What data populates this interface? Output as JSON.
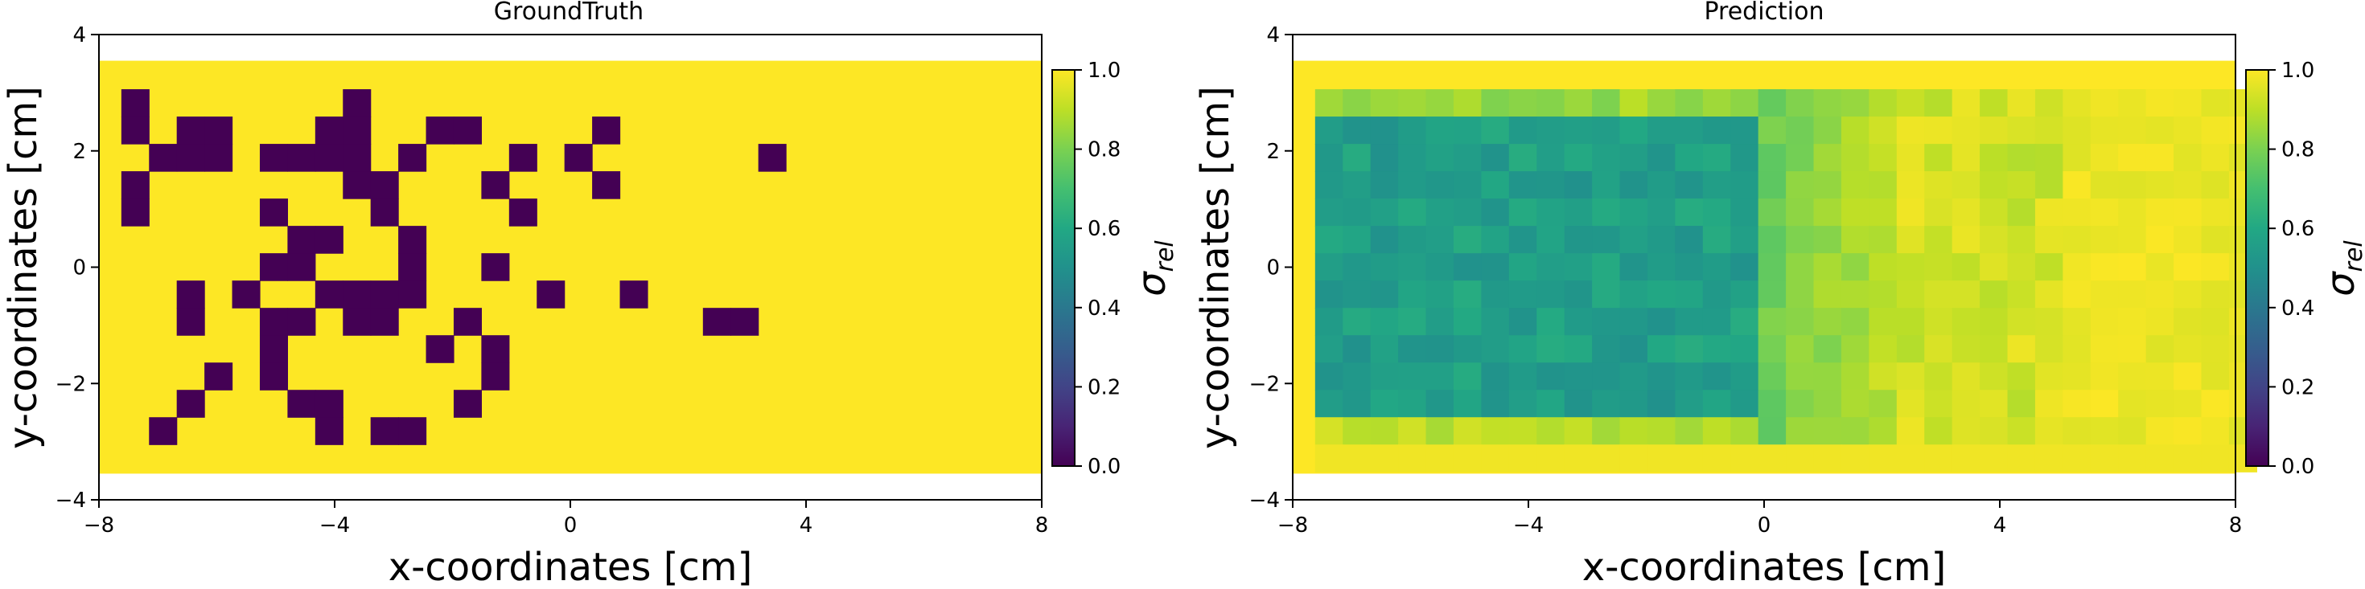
{
  "chart_data": [
    {
      "type": "heatmap",
      "title": "GroundTruth",
      "xlabel": "x-coordinates [cm]",
      "ylabel": "y-coordinates [cm]",
      "xlim": [
        -8,
        8
      ],
      "ylim": [
        -4,
        4
      ],
      "xticks": [
        -8,
        -4,
        0,
        4,
        8
      ],
      "yticks": [
        -4,
        -2,
        0,
        2,
        4
      ],
      "field_extent": {
        "x": [
          -8,
          8
        ],
        "y": [
          -3.55,
          3.55
        ]
      },
      "cell_size_cm": 0.47,
      "grid_origin_cm": {
        "x": -7.62,
        "y": 3.06
      },
      "background_value": 1.0,
      "note_cells": "cells are [column, row] indices, row 0 at top (y=3.06 cm), value 0.0",
      "low_cells": [
        [
          0,
          0
        ],
        [
          8,
          0
        ],
        [
          0,
          1
        ],
        [
          2,
          1
        ],
        [
          3,
          1
        ],
        [
          7,
          1
        ],
        [
          8,
          1
        ],
        [
          11,
          1
        ],
        [
          12,
          1
        ],
        [
          17,
          1
        ],
        [
          1,
          2
        ],
        [
          2,
          2
        ],
        [
          3,
          2
        ],
        [
          5,
          2
        ],
        [
          6,
          2
        ],
        [
          7,
          2
        ],
        [
          8,
          2
        ],
        [
          10,
          2
        ],
        [
          14,
          2
        ],
        [
          16,
          2
        ],
        [
          23,
          2
        ],
        [
          0,
          3
        ],
        [
          8,
          3
        ],
        [
          9,
          3
        ],
        [
          13,
          3
        ],
        [
          17,
          3
        ],
        [
          0,
          4
        ],
        [
          5,
          4
        ],
        [
          9,
          4
        ],
        [
          14,
          4
        ],
        [
          6,
          5
        ],
        [
          7,
          5
        ],
        [
          10,
          5
        ],
        [
          5,
          6
        ],
        [
          6,
          6
        ],
        [
          10,
          6
        ],
        [
          13,
          6
        ],
        [
          2,
          7
        ],
        [
          4,
          7
        ],
        [
          7,
          7
        ],
        [
          8,
          7
        ],
        [
          9,
          7
        ],
        [
          10,
          7
        ],
        [
          15,
          7
        ],
        [
          18,
          7
        ],
        [
          2,
          8
        ],
        [
          5,
          8
        ],
        [
          6,
          8
        ],
        [
          8,
          8
        ],
        [
          9,
          8
        ],
        [
          12,
          8
        ],
        [
          21,
          8
        ],
        [
          22,
          8
        ],
        [
          5,
          9
        ],
        [
          11,
          9
        ],
        [
          13,
          9
        ],
        [
          3,
          10
        ],
        [
          5,
          10
        ],
        [
          13,
          10
        ],
        [
          2,
          11
        ],
        [
          6,
          11
        ],
        [
          7,
          11
        ],
        [
          12,
          11
        ],
        [
          1,
          12
        ],
        [
          7,
          12
        ],
        [
          9,
          12
        ],
        [
          10,
          12
        ]
      ],
      "colorbar": {
        "label": "σ",
        "label_sub": "rel",
        "range": [
          0.0,
          1.0
        ],
        "ticks": [
          "0.0",
          "0.2",
          "0.4",
          "0.6",
          "0.8",
          "1.0"
        ]
      }
    },
    {
      "type": "heatmap",
      "title": "Prediction",
      "xlabel": "x-coordinates [cm]",
      "ylabel": "y-coordinates [cm]",
      "xlim": [
        -8,
        8
      ],
      "ylim": [
        -4,
        4
      ],
      "xticks": [
        -8,
        -4,
        0,
        4,
        8
      ],
      "yticks": [
        -4,
        -2,
        0,
        2,
        4
      ],
      "field_extent": {
        "x": [
          -8,
          8
        ],
        "y": [
          -3.55,
          3.55
        ]
      },
      "cell_size_cm": 0.47,
      "grid_origin_cm": {
        "x": -7.62,
        "y": 3.06
      },
      "background_value": 1.0,
      "value_pattern": "low values (about 0.45-0.6) in region x from -7.4 to -0.2 cm, y from -2.5 to 2.5 cm; rising to about 0.7-0.85 from x -1 to 4 cm; near 1.0 beyond x 4 cm",
      "colorbar": {
        "label": "σ",
        "label_sub": "rel",
        "range": [
          0.0,
          1.0
        ],
        "ticks": [
          "0.0",
          "0.2",
          "0.4",
          "0.6",
          "0.8",
          "1.0"
        ]
      }
    }
  ]
}
